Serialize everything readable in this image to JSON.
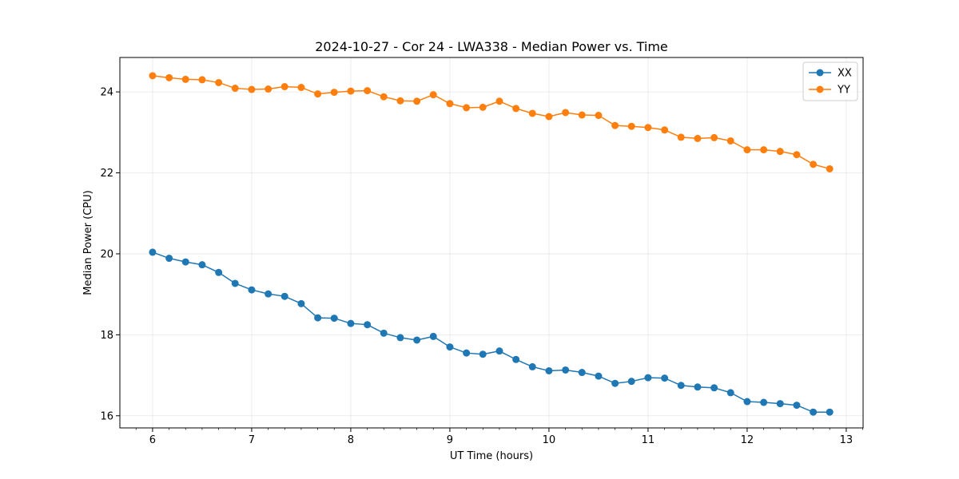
{
  "chart_data": {
    "type": "line",
    "title": "2024-10-27 - Cor 24 - LWA338 - Median Power vs. Time",
    "xlabel": "UT Time (hours)",
    "ylabel": "Median Power (CPU)",
    "xlim": [
      5.67,
      13.17
    ],
    "ylim": [
      15.7,
      24.85
    ],
    "xticks": [
      6,
      7,
      8,
      9,
      10,
      11,
      12,
      13
    ],
    "yticks": [
      16,
      18,
      20,
      22,
      24
    ],
    "grid": true,
    "legend_position": "top-right",
    "x": [
      6.0,
      6.167,
      6.333,
      6.5,
      6.667,
      6.833,
      7.0,
      7.167,
      7.333,
      7.5,
      7.667,
      7.833,
      8.0,
      8.167,
      8.333,
      8.5,
      8.667,
      8.833,
      9.0,
      9.167,
      9.333,
      9.5,
      9.667,
      9.833,
      10.0,
      10.167,
      10.333,
      10.5,
      10.667,
      10.833,
      11.0,
      11.167,
      11.333,
      11.5,
      11.667,
      11.833,
      12.0,
      12.167,
      12.333,
      12.5,
      12.667,
      12.833
    ],
    "series": [
      {
        "name": "XX",
        "color": "#1f77b4",
        "values": [
          20.04,
          19.89,
          19.8,
          19.73,
          19.54,
          19.27,
          19.11,
          19.01,
          18.95,
          18.77,
          18.42,
          18.41,
          18.28,
          18.25,
          18.04,
          17.93,
          17.87,
          17.96,
          17.7,
          17.55,
          17.52,
          17.6,
          17.39,
          17.21,
          17.11,
          17.13,
          17.07,
          16.98,
          16.8,
          16.85,
          16.94,
          16.93,
          16.75,
          16.71,
          16.69,
          16.57,
          16.35,
          16.33,
          16.3,
          16.26,
          16.09,
          16.09
        ]
      },
      {
        "name": "YY",
        "color": "#ff7f0e",
        "values": [
          24.4,
          24.35,
          24.31,
          24.3,
          24.23,
          24.09,
          24.06,
          24.07,
          24.13,
          24.11,
          23.95,
          23.99,
          24.02,
          24.03,
          23.88,
          23.78,
          23.77,
          23.93,
          23.71,
          23.61,
          23.62,
          23.77,
          23.59,
          23.47,
          23.39,
          23.49,
          23.43,
          23.42,
          23.17,
          23.15,
          23.12,
          23.06,
          22.88,
          22.85,
          22.87,
          22.79,
          22.57,
          22.57,
          22.53,
          22.45,
          22.21,
          22.1
        ]
      }
    ]
  }
}
